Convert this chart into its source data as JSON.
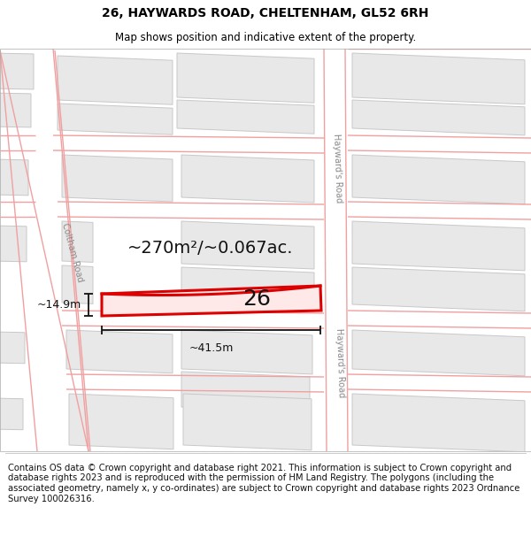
{
  "title": "26, HAYWARDS ROAD, CHELTENHAM, GL52 6RH",
  "subtitle": "Map shows position and indicative extent of the property.",
  "footer": "Contains OS data © Crown copyright and database right 2021. This information is subject to Crown copyright and database rights 2023 and is reproduced with the permission of HM Land Registry. The polygons (including the associated geometry, namely x, y co-ordinates) are subject to Crown copyright and database rights 2023 Ordnance Survey 100026316.",
  "area_text": "~270m²/~0.067ac.",
  "number_label": "26",
  "dim_width": "~41.5m",
  "dim_height": "~14.9m",
  "coltham_road_label": "Coltham Road",
  "haywards_road_label_top": "Hayward's Road",
  "haywards_road_label_bottom": "Hayward's Road",
  "map_bg": "#ffffff",
  "building_fill": "#e8e8e8",
  "building_edge": "#c8c8c8",
  "highlight_fill": "#ffe8e8",
  "highlight_edge": "#dd0000",
  "road_line_color": "#f0a0a0",
  "road_bg": "#ffffff",
  "dim_color": "#111111",
  "label_color": "#222222",
  "road_label_color": "#888888",
  "title_fontsize": 10,
  "subtitle_fontsize": 8.5,
  "footer_fontsize": 7.2,
  "area_fontsize": 14,
  "number_fontsize": 18,
  "dim_fontsize": 9,
  "road_label_fontsize": 7
}
